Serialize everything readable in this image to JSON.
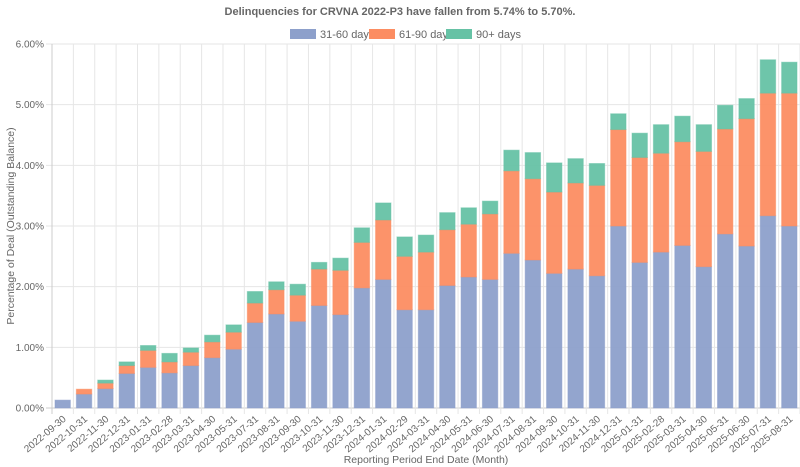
{
  "chart_data": {
    "type": "bar",
    "stacked": true,
    "title": "Delinquencies for CRVNA 2022-P3 have fallen from 5.74% to 5.70%.",
    "xlabel": "Reporting Period End Date (Month)",
    "ylabel": "Percentage of Deal (Outstanding Balance)",
    "ylim": [
      0,
      6
    ],
    "yticks": [
      "0.00%",
      "1.00%",
      "2.00%",
      "3.00%",
      "4.00%",
      "5.00%",
      "6.00%"
    ],
    "ytick_values": [
      0,
      1,
      2,
      3,
      4,
      5,
      6
    ],
    "grid": true,
    "legend_position": "top-center",
    "categories": [
      "2022-09-30",
      "2022-10-31",
      "2022-11-30",
      "2022-12-31",
      "2023-01-31",
      "2023-02-28",
      "2023-03-31",
      "2023-04-30",
      "2023-05-31",
      "2023-07-31",
      "2023-08-31",
      "2023-09-30",
      "2023-10-31",
      "2023-11-30",
      "2023-12-31",
      "2024-01-31",
      "2024-02-29",
      "2024-03-31",
      "2024-04-30",
      "2024-05-31",
      "2024-06-30",
      "2024-07-31",
      "2024-08-31",
      "2024-09-30",
      "2024-10-31",
      "2024-11-30",
      "2024-12-31",
      "2025-01-31",
      "2025-02-28",
      "2025-03-31",
      "2025-04-30",
      "2025-05-31",
      "2025-06-30",
      "2025-07-31",
      "2025-08-31"
    ],
    "series": [
      {
        "name": "31-60 days",
        "color": "#8da0cb",
        "values": [
          0.13,
          0.23,
          0.32,
          0.57,
          0.67,
          0.58,
          0.7,
          0.83,
          0.97,
          1.41,
          1.55,
          1.43,
          1.69,
          1.54,
          1.98,
          2.12,
          1.62,
          1.62,
          2.02,
          2.16,
          2.12,
          2.55,
          2.44,
          2.22,
          2.29,
          2.18,
          3.0,
          2.4,
          2.57,
          2.68,
          2.33,
          2.87,
          2.67,
          3.17,
          3.0
        ]
      },
      {
        "name": "61-90 days",
        "color": "#fc8d62",
        "values": [
          0.0,
          0.08,
          0.09,
          0.13,
          0.28,
          0.18,
          0.22,
          0.26,
          0.28,
          0.32,
          0.4,
          0.43,
          0.6,
          0.73,
          0.75,
          0.98,
          0.88,
          0.95,
          0.92,
          0.87,
          1.08,
          1.36,
          1.34,
          1.34,
          1.42,
          1.49,
          1.59,
          1.73,
          1.63,
          1.71,
          1.9,
          1.73,
          2.1,
          2.02,
          2.19
        ]
      },
      {
        "name": "90+ days",
        "color": "#66c2a5",
        "values": [
          0.0,
          0.0,
          0.05,
          0.06,
          0.08,
          0.14,
          0.07,
          0.11,
          0.12,
          0.19,
          0.13,
          0.18,
          0.11,
          0.2,
          0.24,
          0.28,
          0.32,
          0.28,
          0.28,
          0.27,
          0.21,
          0.34,
          0.43,
          0.48,
          0.4,
          0.36,
          0.26,
          0.4,
          0.47,
          0.42,
          0.44,
          0.39,
          0.33,
          0.55,
          0.51
        ]
      }
    ]
  }
}
